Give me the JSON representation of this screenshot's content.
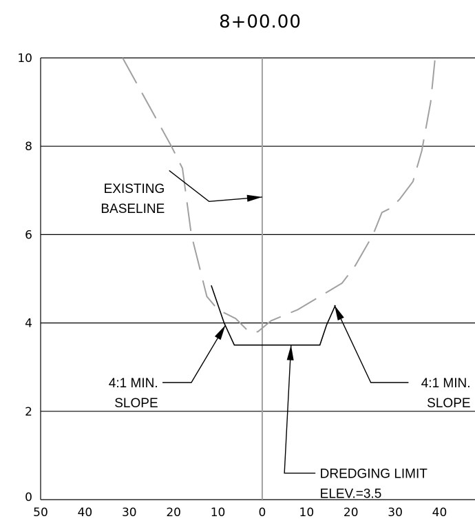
{
  "chart_data": {
    "type": "line",
    "title": "8+00.00",
    "xlabel": "",
    "ylabel": "",
    "xlim": [
      -50,
      48
    ],
    "ylim": [
      0,
      10
    ],
    "x_tick_values": [
      -50,
      -40,
      -30,
      -20,
      -10,
      0,
      10,
      20,
      30,
      40
    ],
    "x_tick_labels": [
      "50",
      "40",
      "30",
      "20",
      "10",
      "0",
      "10",
      "20",
      "30",
      "40"
    ],
    "y_ticks": [
      0,
      2,
      4,
      6,
      8,
      10
    ],
    "grid": "horizontal",
    "baseline_x": 0,
    "series": [
      {
        "style": "dashed",
        "color": "#a0a0a0",
        "x": [
          -31.5,
          -20.5,
          -18,
          -16,
          -14,
          -12.5,
          -10,
          -6,
          -3,
          -1,
          2,
          8,
          13,
          18,
          21,
          25,
          27,
          29,
          31,
          34,
          36,
          38,
          39
        ],
        "y": [
          10,
          8,
          7.5,
          6,
          5.2,
          4.6,
          4.3,
          4.1,
          3.8,
          3.8,
          4.05,
          4.3,
          4.6,
          4.9,
          5.3,
          6,
          6.5,
          6.6,
          6.8,
          7.2,
          7.9,
          9,
          10
        ]
      },
      {
        "style": "solid",
        "color": "#000000",
        "x": [
          -11.5,
          -8.6,
          -6.3,
          13,
          14.5,
          16.5
        ],
        "y": [
          4.85,
          4,
          3.5,
          3.5,
          3.95,
          4.4
        ]
      }
    ],
    "annotations": [
      {
        "lines": [
          "EXISTING",
          "BASELINE"
        ],
        "align": "right",
        "arrow_to": [
          0,
          6.85
        ],
        "elbow": [
          -12,
          6.75
        ],
        "text_at": [
          -22,
          7.05
        ],
        "line_start": [
          -21,
          7.45
        ]
      },
      {
        "lines": [
          "4:1 MIN.",
          "SLOPE"
        ],
        "align": "right",
        "arrow_to": [
          -8.3,
          3.95
        ],
        "elbow": [
          -16,
          2.65
        ],
        "text_at": [
          -23.5,
          2.65
        ],
        "line_start": [
          -22.5,
          2.65
        ]
      },
      {
        "lines": [
          "4:1 MIN.",
          "SLOPE"
        ],
        "align": "right",
        "arrow_to": [
          16.3,
          4.4
        ],
        "elbow": [
          24.5,
          2.65
        ],
        "text_at": [
          47,
          2.65
        ],
        "line_start": [
          33,
          2.65
        ]
      },
      {
        "lines": [
          "DREDGING LIMIT",
          "ELEV.=3.5"
        ],
        "align": "left",
        "arrow_to": [
          6.5,
          3.5
        ],
        "elbow": [
          5,
          0.6
        ],
        "text_at": [
          13,
          0.6
        ],
        "line_start": [
          12,
          0.6
        ]
      }
    ]
  }
}
